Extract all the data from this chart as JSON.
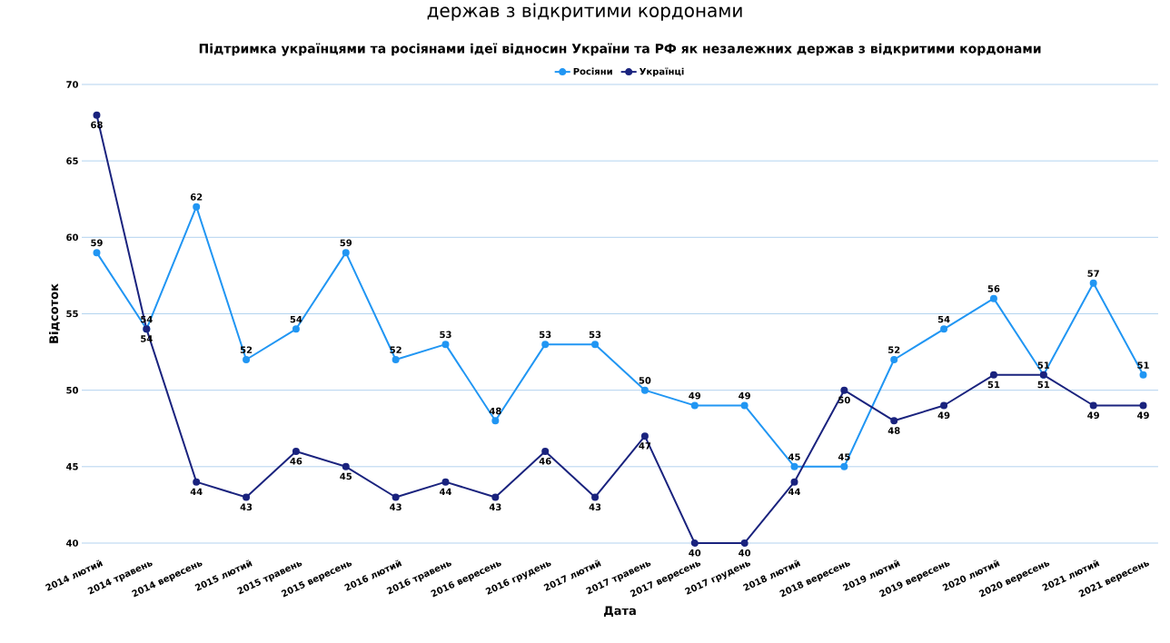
{
  "chart_data": {
    "type": "line",
    "title": "Підтримка українцями та росіянами ідеї відносин України та РФ як незалежних держав з відкритими кордонами",
    "annotations": [
      "держав з відкритими кордонами"
    ],
    "xlabel": "Дата",
    "ylabel": "Відсоток",
    "categories": [
      "2014 лютий",
      "2014 травень",
      "2014 вересень",
      "2015 лютий",
      "2015 травень",
      "2015 вересень",
      "2016 лютий",
      "2016 травень",
      "2016 вересень",
      "2016 грудень",
      "2017 лютий",
      "2017 травень",
      "2017 вересень",
      "2017 грудень",
      "2018 лютий",
      "2018 вересень",
      "2019 лютий",
      "2019 вересень",
      "2020 лютий",
      "2020 вересень",
      "2021 лютий",
      "2021 вересень"
    ],
    "series": [
      {
        "name": "Росіяни",
        "color": "#2196f3",
        "values": [
          59,
          54,
          62,
          52,
          54,
          59,
          52,
          53,
          48,
          53,
          53,
          50,
          49,
          49,
          45,
          45,
          52,
          54,
          56,
          51,
          57,
          51
        ]
      },
      {
        "name": "Українці",
        "color": "#1a237e",
        "values": [
          68,
          54,
          44,
          43,
          46,
          45,
          43,
          44,
          43,
          46,
          43,
          47,
          40,
          40,
          44,
          50,
          48,
          49,
          51,
          51,
          49,
          49
        ]
      }
    ],
    "ylim": [
      40,
      70
    ],
    "yticks": [
      40,
      45,
      50,
      55,
      60,
      65,
      70
    ],
    "grid": "y",
    "legend": "top",
    "marker": "circle",
    "line_style": "solid",
    "data_labels": true
  }
}
